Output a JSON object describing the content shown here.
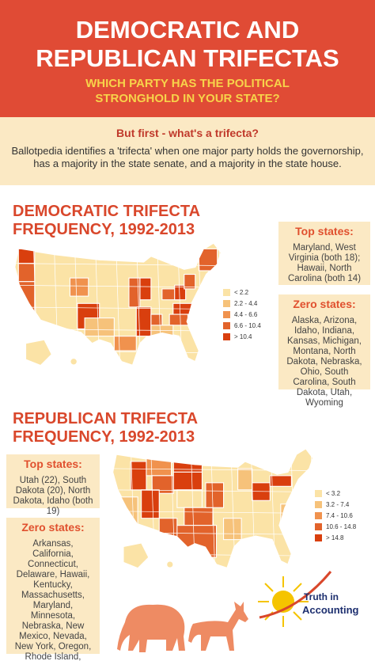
{
  "header": {
    "title": "DEMOCRATIC AND REPUBLICAN TRIFECTAS",
    "subtitle": "WHICH PARTY HAS THE POLITICAL STRONGHOLD IN YOUR STATE?"
  },
  "intro": {
    "heading": "But first - what's a trifecta?",
    "text": "Ballotpedia identifies a 'trifecta' when one major party holds the governorship, has a majority in the state senate, and a majority in the state house."
  },
  "democratic": {
    "title": "DEMOCRATIC TRIFECTA FREQUENCY, 1992-2013",
    "legend": [
      {
        "label": "< 2.2",
        "color": "#fbe3a6"
      },
      {
        "label": "2.2 - 4.4",
        "color": "#f6c27a"
      },
      {
        "label": "4.4 - 6.6",
        "color": "#f0924e"
      },
      {
        "label": "6.6 - 10.4",
        "color": "#e2632b"
      },
      {
        "label": "> 10.4",
        "color": "#d93f0e"
      }
    ],
    "top_states": {
      "heading": "Top states:",
      "text": "Maryland, West Virginia (both 18); Hawaii, North Carolina (both 14)"
    },
    "zero_states": {
      "heading": "Zero states:",
      "text": "Alaska, Arizona, Idaho, Indiana, Kansas, Michigan, Montana, North Dakota, Nebraska, Ohio, South Carolina, South Dakota, Utah, Wyoming"
    }
  },
  "republican": {
    "title": "REPUBLICAN TRIFECTA FREQUENCY, 1992-2013",
    "legend": [
      {
        "label": "< 3.2",
        "color": "#fbe3a6"
      },
      {
        "label": "3.2 - 7.4",
        "color": "#f6c27a"
      },
      {
        "label": "7.4 - 10.6",
        "color": "#f0924e"
      },
      {
        "label": "10.6 - 14.8",
        "color": "#e2632b"
      },
      {
        "label": "> 14.8",
        "color": "#d93f0e"
      }
    ],
    "top_states": {
      "heading": "Top states:",
      "text": "Utah (22), South Dakota (20), North Dakota, Idaho (both 19)"
    },
    "zero_states": {
      "heading": "Zero states:",
      "text": "Arkansas, California, Connecticut, Delaware, Hawaii, Kentucky, Massachusetts, Maryland, Minnesota, Nebraska, New Mexico, Nevada, New York, Oregon, Rhode Island, Vermont, Washington, West Virginia"
    }
  },
  "logo": {
    "line1": "Truth in",
    "line2": "Accounting"
  }
}
